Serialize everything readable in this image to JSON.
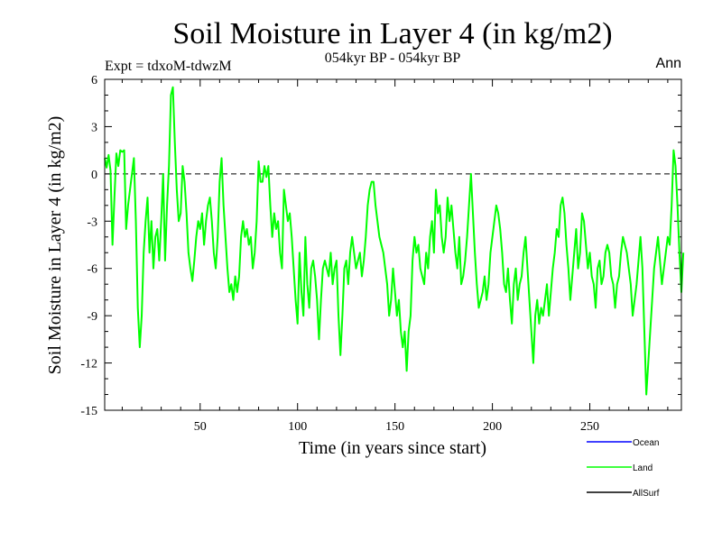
{
  "chart_data": {
    "type": "line",
    "title": "Soil Moisture in Layer 4 (in kg/m2)",
    "subtitle": "054kyr BP - 054kyr BP",
    "experiment_label": "Expt = tdxoM-tdwzM",
    "period_label": "Ann",
    "xlabel": "Time (in years since start)",
    "ylabel": "Soil Moisture in Layer 4 (in kg/m2)",
    "xlim": [
      1,
      297
    ],
    "ylim": [
      -15,
      6
    ],
    "x_ticks": [
      50,
      100,
      150,
      200,
      250
    ],
    "y_ticks": [
      6,
      3,
      0,
      -3,
      -6,
      -9,
      -12,
      -15
    ],
    "zero_line": "dashed",
    "grid": false,
    "legend_position": "bottom-right",
    "legend": [
      {
        "name": "Ocean",
        "color": "#0000ff"
      },
      {
        "name": "Land",
        "color": "#00ff00"
      },
      {
        "name": "AllSurf",
        "color": "#000000"
      }
    ],
    "series": [
      {
        "name": "Land",
        "color": "#00ff00",
        "x_start": 1,
        "x_step": 1,
        "values": [
          1.0,
          0.4,
          1.2,
          0.2,
          -4.5,
          -1.5,
          1.3,
          0.5,
          1.5,
          1.4,
          1.5,
          -3.5,
          -2.0,
          -1.0,
          0.0,
          1.0,
          -3.0,
          -8.5,
          -11.0,
          -9.0,
          -5.0,
          -3.0,
          -1.5,
          -5.0,
          -3.0,
          -6.0,
          -4.0,
          -3.5,
          -5.5,
          -3.0,
          0.0,
          -5.5,
          -2.0,
          0.5,
          5.0,
          5.5,
          2.0,
          -1.0,
          -3.0,
          -2.5,
          0.5,
          -0.5,
          -2.5,
          -5.0,
          -6.0,
          -6.8,
          -5.5,
          -4.0,
          -3.0,
          -3.5,
          -2.5,
          -4.5,
          -3.0,
          -2.0,
          -1.5,
          -3.0,
          -5.0,
          -6.0,
          -4.0,
          -0.5,
          1.0,
          -2.0,
          -4.0,
          -6.0,
          -7.5,
          -7.0,
          -8.0,
          -6.5,
          -7.5,
          -6.5,
          -4.0,
          -3.0,
          -4.0,
          -3.5,
          -4.5,
          -4.0,
          -6.0,
          -5.0,
          -3.0,
          0.8,
          -0.5,
          -0.5,
          0.5,
          -0.2,
          0.5,
          -2.0,
          -4.0,
          -2.5,
          -3.5,
          -3.0,
          -5.0,
          -6.0,
          -1.0,
          -2.0,
          -3.0,
          -2.5,
          -4.0,
          -6.0,
          -8.0,
          -9.5,
          -5.0,
          -7.5,
          -9.0,
          -4.0,
          -7.0,
          -8.5,
          -6.0,
          -5.5,
          -6.5,
          -8.0,
          -10.5,
          -8.0,
          -6.0,
          -5.5,
          -6.0,
          -6.5,
          -5.0,
          -7.0,
          -6.0,
          -5.5,
          -9.0,
          -11.5,
          -9.0,
          -6.0,
          -5.5,
          -7.0,
          -5.0,
          -4.0,
          -5.0,
          -6.0,
          -5.5,
          -5.0,
          -6.5,
          -5.5,
          -4.0,
          -2.0,
          -1.0,
          -0.5,
          -0.5,
          -2.0,
          -3.0,
          -4.0,
          -4.5,
          -5.0,
          -6.0,
          -7.0,
          -9.0,
          -8.0,
          -6.0,
          -7.5,
          -9.0,
          -8.0,
          -10.0,
          -11.0,
          -10.0,
          -12.5,
          -10.0,
          -9.0,
          -5.5,
          -4.0,
          -5.0,
          -4.5,
          -6.0,
          -6.5,
          -7.0,
          -5.0,
          -6.0,
          -4.0,
          -3.0,
          -5.0,
          -1.0,
          -2.5,
          -2.0,
          -4.0,
          -5.0,
          -4.0,
          -1.5,
          -3.0,
          -2.0,
          -3.5,
          -5.0,
          -6.0,
          -4.0,
          -7.0,
          -6.5,
          -5.5,
          -4.0,
          -2.0,
          0.0,
          -2.5,
          -5.0,
          -7.0,
          -8.5,
          -8.0,
          -7.5,
          -6.5,
          -8.0,
          -7.0,
          -5.0,
          -4.0,
          -3.0,
          -2.0,
          -2.5,
          -3.5,
          -5.0,
          -7.0,
          -7.5,
          -6.0,
          -8.0,
          -9.5,
          -7.0,
          -6.0,
          -8.0,
          -7.0,
          -6.5,
          -5.0,
          -4.0,
          -6.0,
          -8.0,
          -10.0,
          -12.0,
          -9.0,
          -8.0,
          -9.5,
          -8.5,
          -9.0,
          -8.0,
          -7.0,
          -9.0,
          -7.5,
          -6.0,
          -5.0,
          -3.5,
          -4.0,
          -2.0,
          -1.5,
          -2.5,
          -4.5,
          -6.0,
          -8.0,
          -6.5,
          -5.0,
          -3.5,
          -6.0,
          -5.0,
          -2.5,
          -3.0,
          -4.5,
          -6.0,
          -5.0,
          -6.5,
          -7.0,
          -8.5,
          -6.0,
          -5.5,
          -7.0,
          -6.5,
          -5.0,
          -4.5,
          -5.0,
          -6.5,
          -7.0,
          -8.5,
          -7.0,
          -6.5,
          -5.0,
          -4.0,
          -4.5,
          -5.0,
          -6.0,
          -7.0,
          -9.0,
          -8.0,
          -7.0,
          -5.5,
          -4.0,
          -6.0,
          -10.0,
          -14.0,
          -12.0,
          -10.0,
          -8.0,
          -6.0,
          -5.0,
          -4.0,
          -5.5,
          -7.0,
          -6.0,
          -5.0,
          -4.0,
          -4.5,
          -2.0,
          1.5,
          0.5,
          -2.0,
          -5.0,
          -7.5,
          -5.0
        ]
      }
    ]
  }
}
